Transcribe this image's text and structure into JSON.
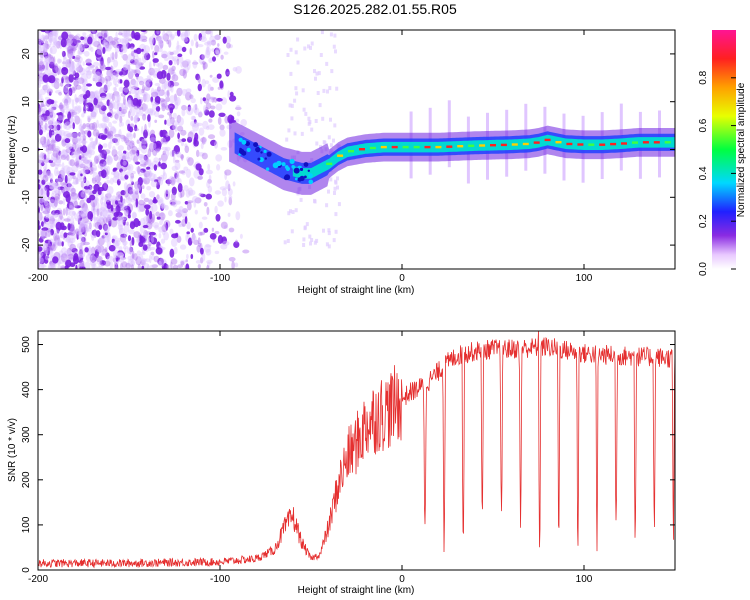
{
  "title": "S126.2025.282.01.55.R05",
  "chart_data": [
    {
      "type": "heatmap",
      "name": "spectrogram",
      "xlabel": "Height of straight line (km)",
      "ylabel": "Frequency (Hz)",
      "xlim": [
        -200,
        150
      ],
      "ylim": [
        -25,
        25
      ],
      "xticks": [
        -200,
        -100,
        0,
        100
      ],
      "yticks": [
        -20,
        -10,
        0,
        10,
        20
      ],
      "colorbar": {
        "label": "Normalized spectral amplitude",
        "range": [
          0,
          1
        ],
        "ticks": [
          "0.0",
          "0.2",
          "0.4",
          "0.6",
          "0.8"
        ],
        "tick_values": [
          0.0,
          0.2,
          0.4,
          0.6,
          0.8
        ]
      },
      "ridge": {
        "x": [
          -95,
          -85,
          -75,
          -65,
          -55,
          -50,
          -45,
          -40,
          -35,
          -30,
          -20,
          -10,
          0,
          20,
          40,
          60,
          70,
          75,
          80,
          90,
          100,
          110,
          120,
          130,
          140,
          150
        ],
        "freq": [
          2,
          0,
          -2,
          -4,
          -5,
          -5,
          -4,
          -3,
          -1.5,
          -0.5,
          0.2,
          0.5,
          0.5,
          0.5,
          0.8,
          1,
          1.2,
          1.5,
          2,
          1.2,
          1,
          1,
          1.2,
          1.5,
          1.5,
          1.5
        ]
      },
      "noise_region": [
        -200,
        -95
      ]
    },
    {
      "type": "line",
      "name": "snr",
      "xlabel": "Height of straight line (km)",
      "ylabel": "SNR (10 * v/v)",
      "xlim": [
        -200,
        150
      ],
      "ylim": [
        0,
        530
      ],
      "xticks": [
        -200,
        -100,
        0,
        100
      ],
      "yticks": [
        0,
        100,
        200,
        300,
        400,
        500
      ],
      "color": "#e53030",
      "envelope": {
        "x": [
          -200,
          -150,
          -100,
          -80,
          -70,
          -65,
          -60,
          -55,
          -50,
          -45,
          -40,
          -35,
          -30,
          -25,
          -20,
          -15,
          -10,
          -5,
          0,
          5,
          10,
          15,
          20,
          25,
          30,
          40,
          50,
          60,
          80,
          100,
          120,
          150
        ],
        "y": [
          15,
          15,
          18,
          25,
          45,
          90,
          120,
          60,
          25,
          35,
          100,
          190,
          250,
          280,
          320,
          340,
          350,
          360,
          380,
          395,
          405,
          420,
          440,
          460,
          475,
          485,
          490,
          490,
          495,
          480,
          475,
          470
        ]
      },
      "dropouts": {
        "start_x": 12,
        "spacing": 10.5,
        "min_value": 30
      }
    }
  ]
}
